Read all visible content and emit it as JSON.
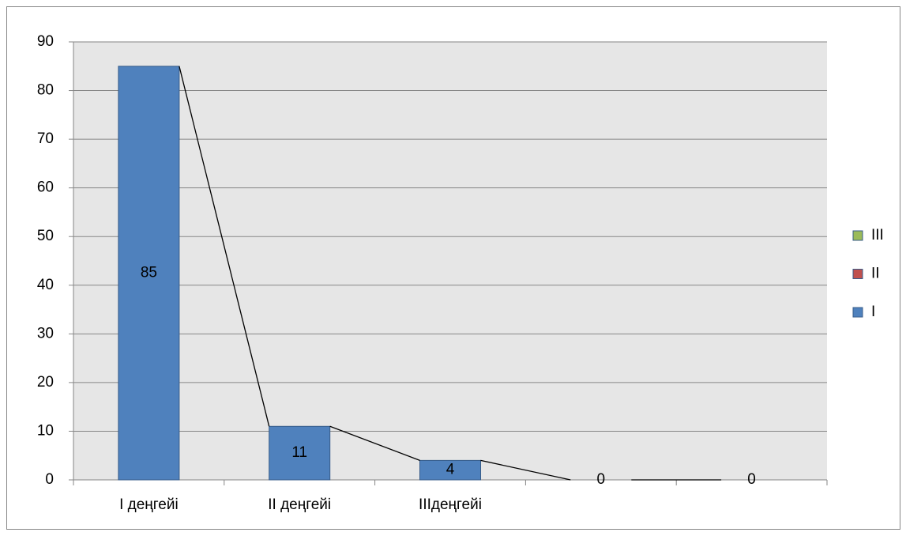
{
  "chart_data": {
    "type": "bar",
    "stacked": true,
    "categories": [
      "I деңгейі",
      "II деңгейі",
      "IIIдеңгейі",
      null,
      null
    ],
    "series": [
      {
        "name": "I",
        "color": "#4f81bd",
        "values": [
          85,
          11,
          4,
          0,
          0
        ]
      },
      {
        "name": "II",
        "color": "#c0504d",
        "values": [
          0,
          0,
          0,
          0,
          0
        ]
      },
      {
        "name": "III",
        "color": "#9bbb59",
        "values": [
          0,
          0,
          0,
          0,
          0
        ]
      }
    ],
    "ylim": [
      0,
      90
    ],
    "yticks": [
      0,
      10,
      20,
      30,
      40,
      50,
      60,
      70,
      80,
      90
    ],
    "grid": true,
    "legend": "right",
    "data_labels": true,
    "series_lines": true
  }
}
